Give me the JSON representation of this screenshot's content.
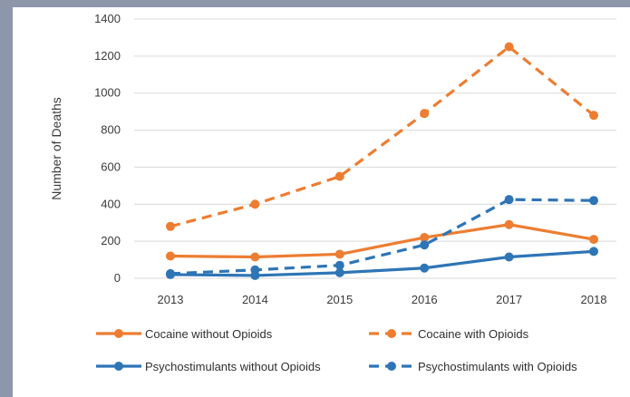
{
  "chart_data": {
    "type": "line",
    "title": "",
    "xlabel": "",
    "ylabel": "Number of Deaths",
    "x": [
      "2013",
      "2014",
      "2015",
      "2016",
      "2017",
      "2018"
    ],
    "ylim": [
      0,
      1400
    ],
    "yticks": [
      "0",
      "200",
      "400",
      "600",
      "800",
      "1000",
      "1200",
      "1400"
    ],
    "grid": "horizontal",
    "legend_position": "bottom",
    "series": [
      {
        "name": "Cocaine without Opioids",
        "values": [
          120,
          115,
          130,
          220,
          290,
          210
        ],
        "color": "#ed7d31",
        "dashed": false
      },
      {
        "name": "Cocaine with Opioids",
        "values": [
          280,
          400,
          550,
          890,
          1250,
          880
        ],
        "color": "#ed7d31",
        "dashed": true
      },
      {
        "name": "Psychostimulants without Opioids",
        "values": [
          20,
          15,
          30,
          55,
          115,
          145
        ],
        "color": "#2e75b6",
        "dashed": false
      },
      {
        "name": "Psychostimulants with Opioids",
        "values": [
          25,
          45,
          70,
          180,
          425,
          420
        ],
        "color": "#2e75b6",
        "dashed": true
      }
    ]
  }
}
